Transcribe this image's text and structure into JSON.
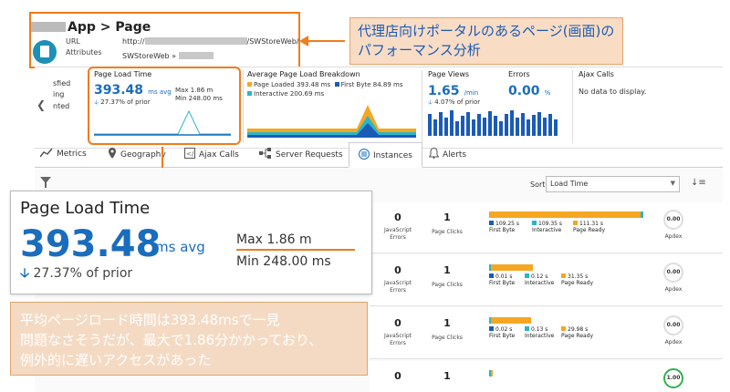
{
  "header": {
    "title": "App > Page",
    "url_label": "URL",
    "url_value_prefix": "http://",
    "url_value_suffix": "/SWStoreWeb/",
    "attributes_label": "Attributes",
    "attributes_value": "SWStoreWeb »"
  },
  "callout_top": {
    "line1": "代理店向けポータルのあるページ(画面)の",
    "line2": "パフォーマンス分析"
  },
  "left_fragment": {
    "line1": "sfied",
    "line2": "ing",
    "line3": "nted"
  },
  "tiles": {
    "page_load_time": {
      "title": "Page Load Time",
      "value": "393.48",
      "unit": "ms avg",
      "max": "Max 1.86 m",
      "min": "Min 248.00 ms",
      "delta": "27.37% of prior"
    },
    "avg_breakdown": {
      "title": "Average Page Load Breakdown",
      "legend": [
        {
          "label": "Page Loaded 393.48 ms",
          "color": "#f5a623"
        },
        {
          "label": "First Byte 84.89 ms",
          "color": "#1a5bb8"
        },
        {
          "label": "Interactive 200.69 ms",
          "color": "#29b6c6"
        }
      ]
    },
    "page_views": {
      "title": "Page Views",
      "value": "1.65",
      "unit": "/min",
      "delta": "4.07% of prior"
    },
    "errors": {
      "title": "Errors",
      "value": "0.00",
      "unit": "%"
    },
    "ajax_calls": {
      "title": "Ajax Calls",
      "message": "No data to display."
    }
  },
  "tabs": [
    {
      "label": "Metrics",
      "icon": "metrics-icon"
    },
    {
      "label": "Geography",
      "icon": "map-pin-icon"
    },
    {
      "label": "Ajax Calls",
      "icon": "code-icon"
    },
    {
      "label": "Server Requests",
      "icon": "flow-icon"
    },
    {
      "label": "Instances",
      "icon": "instances-icon"
    },
    {
      "label": "Alerts",
      "icon": "bell-icon"
    }
  ],
  "sort": {
    "label": "Sort",
    "value": "Load Time"
  },
  "zoom": {
    "title": "Page Load Time",
    "value": "393.48",
    "unit": "ms avg",
    "delta": "27.37% of prior",
    "max": "Max 1.86 m",
    "min": "Min 248.00 ms"
  },
  "callout_bottom": {
    "line1": "平均ページロード時間は393.48msで一見",
    "line2": "問題なさそうだが、最大で1.86分かかっており、",
    "line3": "例外的に遅いアクセスがあった"
  },
  "instances": {
    "js_errors_label1": "JavaScript",
    "js_errors_label2": "Errors",
    "page_clicks_label": "Page Clicks",
    "first_byte_label": "First Byte",
    "interactive_label": "Interactive",
    "page_ready_label": "Page Ready",
    "apdex_label": "Apdex",
    "rows": [
      {
        "js_errors": "0",
        "page_clicks": "1",
        "first_byte": "109.25 s",
        "interactive": "109.35 s",
        "page_ready": "111.31 s",
        "apdex": "0.00",
        "bar_fraction": 0.98
      },
      {
        "js_errors": "0",
        "page_clicks": "1",
        "first_byte": "0.01 s",
        "interactive": "0.12 s",
        "page_ready": "31.35 s",
        "apdex": "0.00",
        "bar_fraction": 0.28
      },
      {
        "js_errors": "0",
        "page_clicks": "1",
        "first_byte": "0.02 s",
        "interactive": "0.13 s",
        "page_ready": "29.98 s",
        "apdex": "0.00",
        "bar_fraction": 0.27
      },
      {
        "js_errors": "0",
        "page_clicks": "1",
        "first_byte": "",
        "interactive": "",
        "page_ready": "",
        "apdex": "1.00",
        "bar_fraction": 0.02
      }
    ]
  },
  "colors": {
    "accent_orange": "#f07c1b",
    "brand_blue": "#1a6dbd",
    "first_byte": "#1a5bb8",
    "interactive": "#29b6c6",
    "page_ready": "#f5a623",
    "apdex_good": "#2fb14d"
  }
}
